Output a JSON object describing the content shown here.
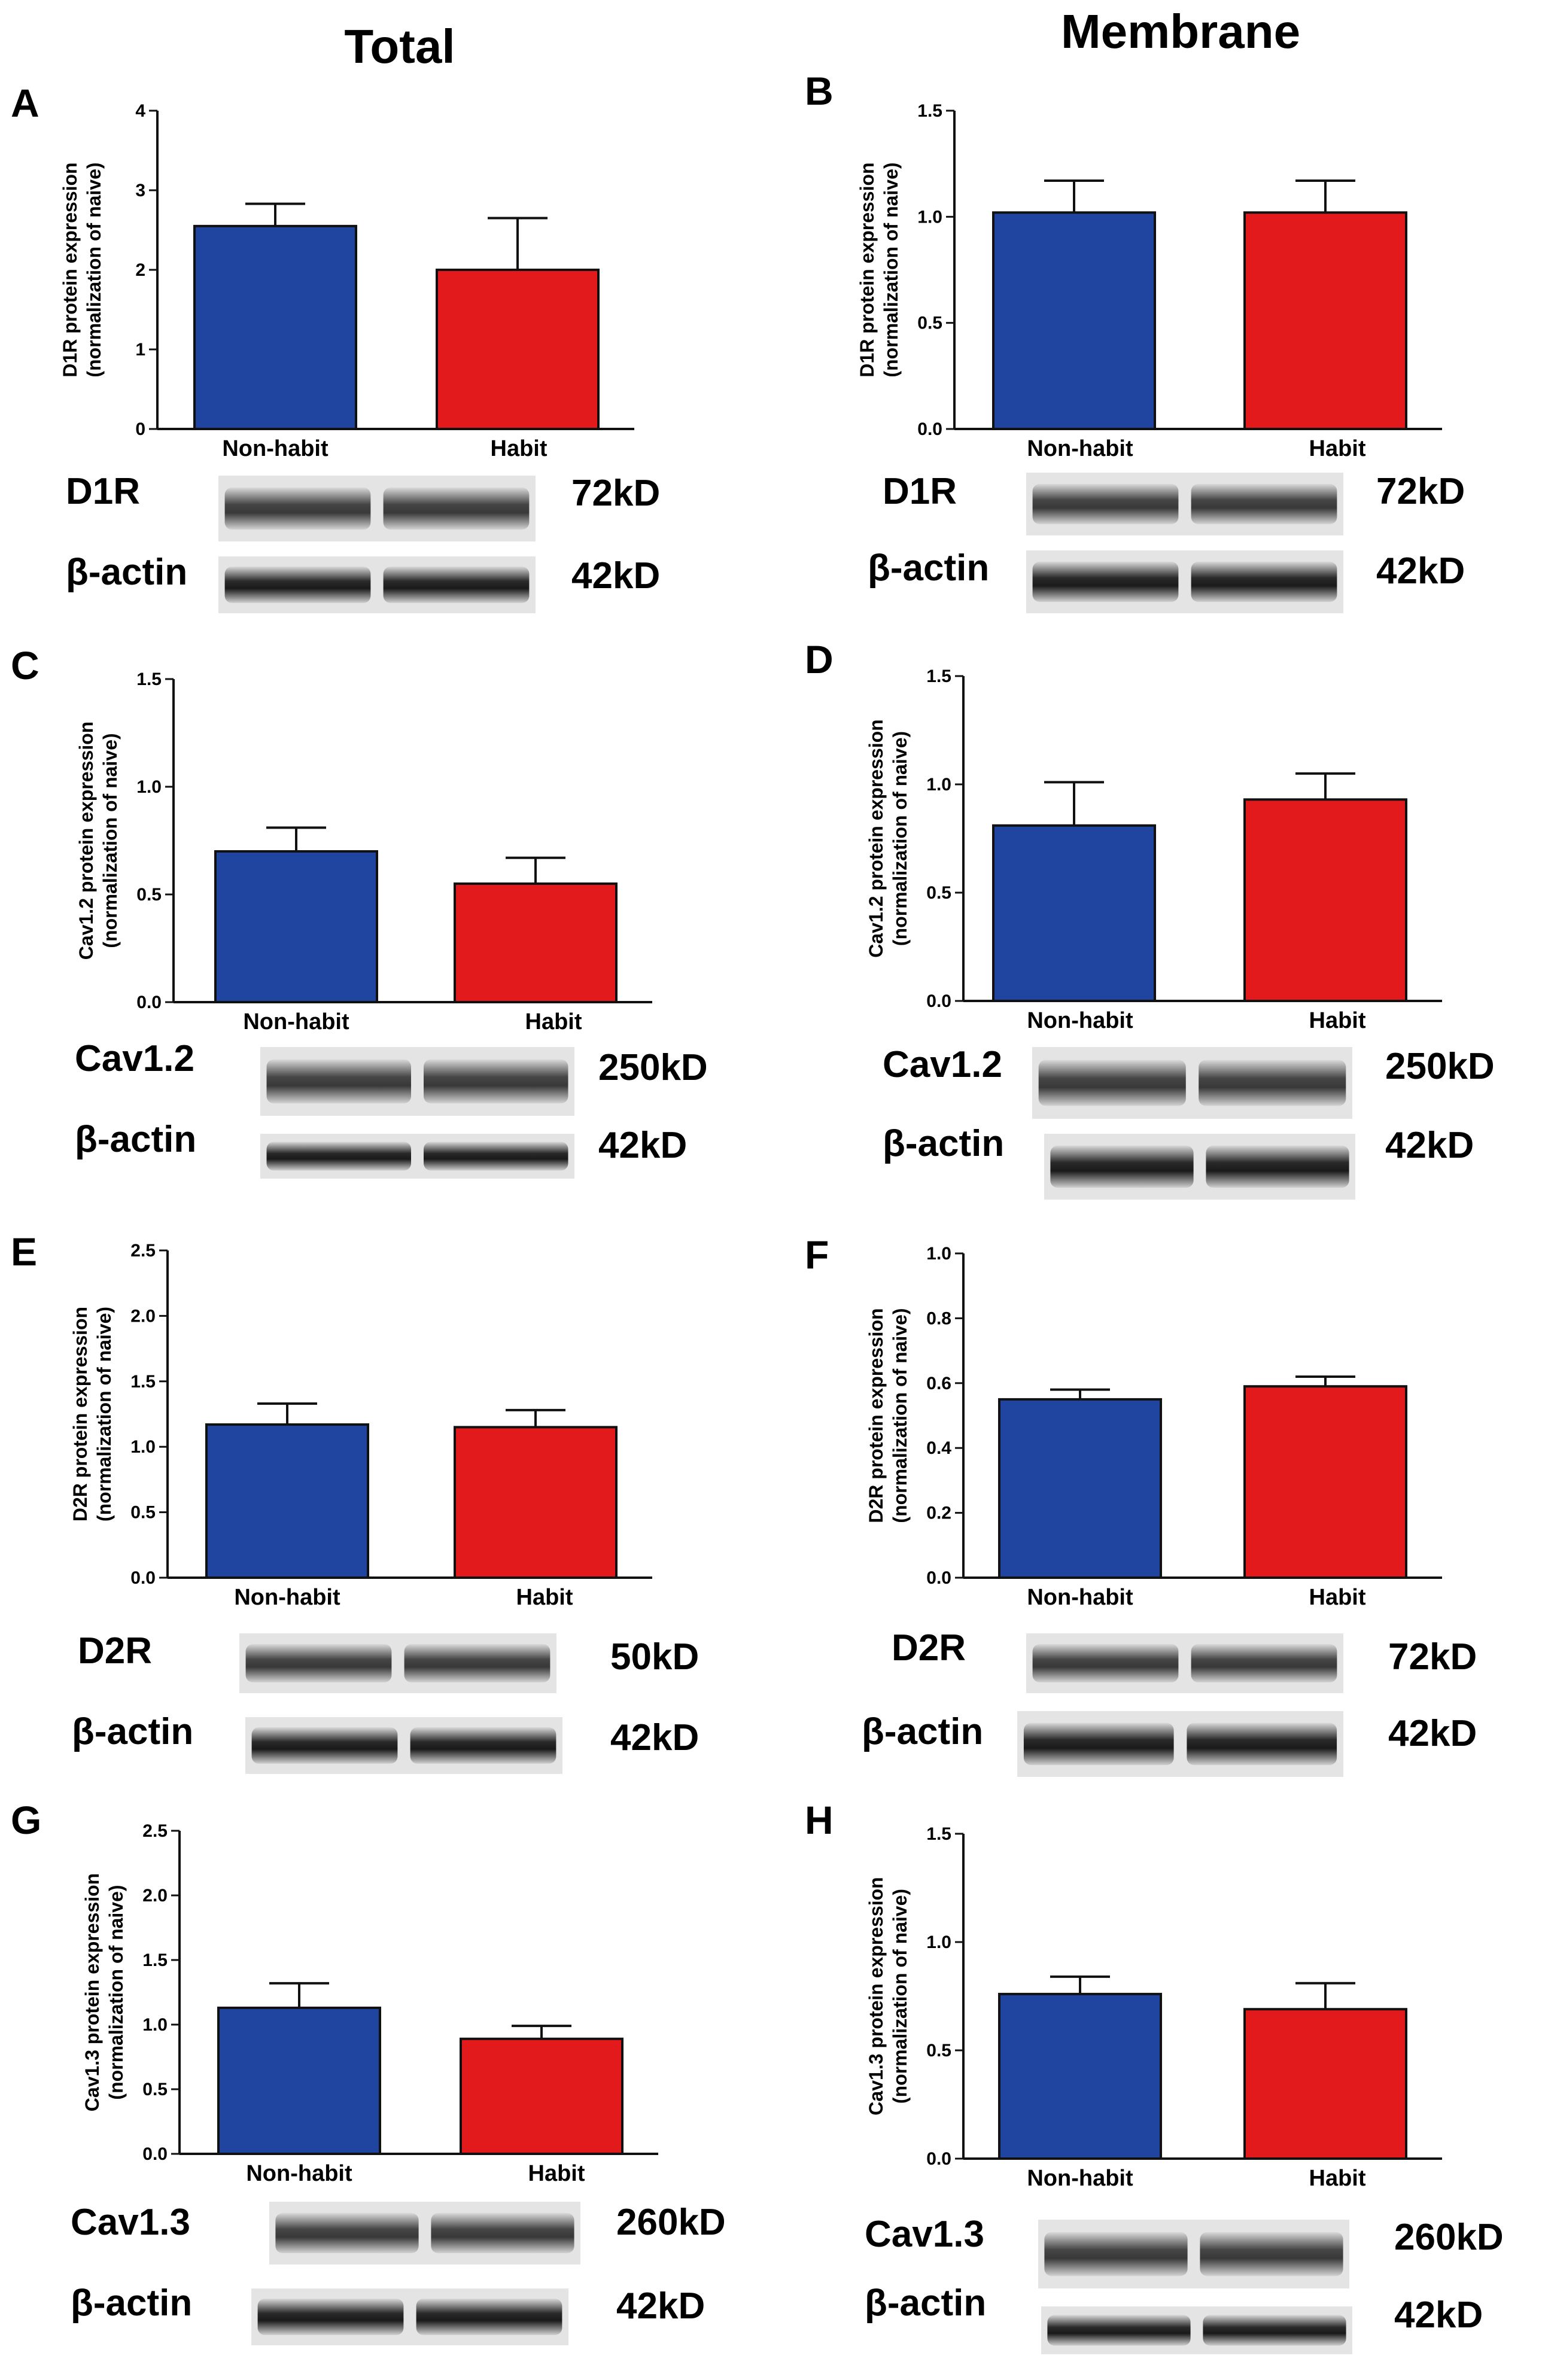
{
  "column_titles": {
    "total": "Total",
    "membrane": "Membrane"
  },
  "colors": {
    "non_habit": "#1f45a0",
    "habit": "#e31a1c",
    "axis": "#111111"
  },
  "chart_data": [
    {
      "panel": "A",
      "type": "bar",
      "categories": [
        "Non-habit",
        "Habit"
      ],
      "values": [
        2.55,
        2.0
      ],
      "errors": [
        0.28,
        0.65
      ],
      "ylabel": "D1R protein expression",
      "ylabel2": "(normalization of naive)",
      "ylim": [
        0,
        4
      ],
      "yticks": [
        "0",
        "1",
        "2",
        "3",
        "4"
      ],
      "blots": [
        {
          "label": "D1R",
          "kd": "72kD"
        },
        {
          "label": "β-actin",
          "kd": "42kD"
        }
      ]
    },
    {
      "panel": "B",
      "type": "bar",
      "categories": [
        "Non-habit",
        "Habit"
      ],
      "values": [
        1.02,
        1.02
      ],
      "errors": [
        0.15,
        0.15
      ],
      "ylabel": "D1R protein expression",
      "ylabel2": "(normalization of naive)",
      "ylim": [
        0,
        1.5
      ],
      "yticks": [
        "0.0",
        "0.5",
        "1.0",
        "1.5"
      ],
      "blots": [
        {
          "label": "D1R",
          "kd": "72kD"
        },
        {
          "label": "β-actin",
          "kd": "42kD"
        }
      ]
    },
    {
      "panel": "C",
      "type": "bar",
      "categories": [
        "Non-habit",
        "Habit"
      ],
      "values": [
        0.7,
        0.55
      ],
      "errors": [
        0.11,
        0.12
      ],
      "ylabel": "Cav1.2 protein expression",
      "ylabel2": "(normalization of naive)",
      "ylim": [
        0,
        1.5
      ],
      "yticks": [
        "0.0",
        "0.5",
        "1.0",
        "1.5"
      ],
      "blots": [
        {
          "label": "Cav1.2",
          "kd": "250kD"
        },
        {
          "label": "β-actin",
          "kd": "42kD"
        }
      ]
    },
    {
      "panel": "D",
      "type": "bar",
      "categories": [
        "Non-habit",
        "Habit"
      ],
      "values": [
        0.81,
        0.93
      ],
      "errors": [
        0.2,
        0.12
      ],
      "ylabel": "Cav1.2 protein expression",
      "ylabel2": "(normalization of naive)",
      "ylim": [
        0,
        1.5
      ],
      "yticks": [
        "0.0",
        "0.5",
        "1.0",
        "1.5"
      ],
      "blots": [
        {
          "label": "Cav1.2",
          "kd": "250kD"
        },
        {
          "label": "β-actin",
          "kd": "42kD"
        }
      ]
    },
    {
      "panel": "E",
      "type": "bar",
      "categories": [
        "Non-habit",
        "Habit"
      ],
      "values": [
        1.17,
        1.15
      ],
      "errors": [
        0.16,
        0.13
      ],
      "ylabel": "D2R protein expression",
      "ylabel2": "(normalization of naive)",
      "ylim": [
        0,
        2.5
      ],
      "yticks": [
        "0.0",
        "0.5",
        "1.0",
        "1.5",
        "2.0",
        "2.5"
      ],
      "blots": [
        {
          "label": "D2R",
          "kd": "50kD"
        },
        {
          "label": "β-actin",
          "kd": "42kD"
        }
      ]
    },
    {
      "panel": "F",
      "type": "bar",
      "categories": [
        "Non-habit",
        "Habit"
      ],
      "values": [
        0.55,
        0.59
      ],
      "errors": [
        0.03,
        0.03
      ],
      "ylabel": "D2R protein expression",
      "ylabel2": "(normalization of naive)",
      "ylim": [
        0,
        1.0
      ],
      "yticks": [
        "0.0",
        "0.2",
        "0.4",
        "0.6",
        "0.8",
        "1.0"
      ],
      "blots": [
        {
          "label": "D2R",
          "kd": "72kD"
        },
        {
          "label": "β-actin",
          "kd": "42kD"
        }
      ]
    },
    {
      "panel": "G",
      "type": "bar",
      "categories": [
        "Non-habit",
        "Habit"
      ],
      "values": [
        1.13,
        0.89
      ],
      "errors": [
        0.19,
        0.1
      ],
      "ylabel": "Cav1.3 protein expression",
      "ylabel2": "(normalization of naive)",
      "ylim": [
        0,
        2.5
      ],
      "yticks": [
        "0.0",
        "0.5",
        "1.0",
        "1.5",
        "2.0",
        "2.5"
      ],
      "blots": [
        {
          "label": "Cav1.3",
          "kd": "260kD"
        },
        {
          "label": "β-actin",
          "kd": "42kD"
        }
      ]
    },
    {
      "panel": "H",
      "type": "bar",
      "categories": [
        "Non-habit",
        "Habit"
      ],
      "values": [
        0.76,
        0.69
      ],
      "errors": [
        0.08,
        0.12
      ],
      "ylabel": "Cav1.3 protein expression",
      "ylabel2": "(normalization of naive)",
      "ylim": [
        0,
        1.5
      ],
      "yticks": [
        "0.0",
        "0.5",
        "1.0",
        "1.5"
      ],
      "blots": [
        {
          "label": "Cav1.3",
          "kd": "260kD"
        },
        {
          "label": "β-actin",
          "kd": "42kD"
        }
      ]
    }
  ]
}
